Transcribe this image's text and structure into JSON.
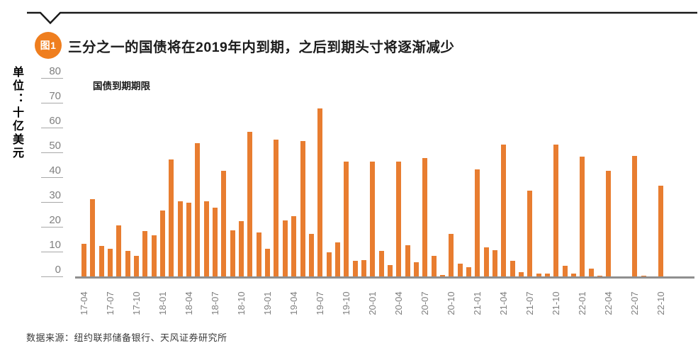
{
  "header": {
    "badge": "图1",
    "title": "三分之一的国债将在2019年内到期，之后到期头寸将逐渐减少"
  },
  "footer": {
    "source": "数据来源：纽约联邦储备银行、天风证券研究所"
  },
  "colors": {
    "bar": "#e87d30",
    "badge": "#ef7e1e",
    "rule": "#1a1a1a",
    "axis_line": "#8f8f8f",
    "tick_text": "#808080"
  },
  "chart_data": {
    "type": "bar",
    "title": "国债到期期限",
    "ylabel": "单位：十亿美元",
    "ylim": [
      0,
      80
    ],
    "yticks": [
      0,
      10,
      20,
      30,
      40,
      50,
      60,
      70,
      80
    ],
    "grid": false,
    "legend_position": "none",
    "xtick_interval": 3,
    "x": [
      "17-04",
      "17-05",
      "17-06",
      "17-07",
      "17-08",
      "17-09",
      "17-10",
      "17-11",
      "17-12",
      "18-01",
      "18-02",
      "18-03",
      "18-04",
      "18-05",
      "18-06",
      "18-07",
      "18-08",
      "18-09",
      "18-10",
      "18-11",
      "18-12",
      "19-01",
      "19-02",
      "19-03",
      "19-04",
      "19-05",
      "19-06",
      "19-07",
      "19-08",
      "19-09",
      "19-10",
      "19-11",
      "19-12",
      "20-01",
      "20-02",
      "20-03",
      "20-04",
      "20-05",
      "20-06",
      "20-07",
      "20-08",
      "20-09",
      "20-10",
      "20-11",
      "20-12",
      "21-01",
      "21-02",
      "21-03",
      "21-04",
      "21-05",
      "21-06",
      "21-07",
      "21-08",
      "21-09",
      "21-10",
      "21-11",
      "21-12",
      "22-01",
      "22-02",
      "22-03",
      "22-04",
      "22-05",
      "22-06",
      "22-07",
      "22-08",
      "22-09",
      "22-10",
      "22-11"
    ],
    "values": [
      13.5,
      31.5,
      12.5,
      11.5,
      21,
      10.5,
      8.5,
      18.5,
      17,
      27,
      47.5,
      30.5,
      30,
      54,
      30.5,
      28,
      43,
      19,
      22.5,
      58.5,
      18,
      11.5,
      55.5,
      23,
      24.5,
      55,
      17.5,
      68,
      10,
      14,
      46.5,
      6.5,
      7,
      46.5,
      10.5,
      5,
      46.5,
      13,
      6,
      48,
      8.5,
      1,
      17.5,
      5.5,
      4,
      43.5,
      12,
      11,
      53.5,
      6.5,
      2,
      35,
      1.5,
      1.5,
      53.5,
      4.5,
      1.5,
      48.5,
      3.5,
      0.5,
      43,
      0,
      0,
      49,
      0.5,
      0.3,
      37,
      0.2
    ]
  }
}
